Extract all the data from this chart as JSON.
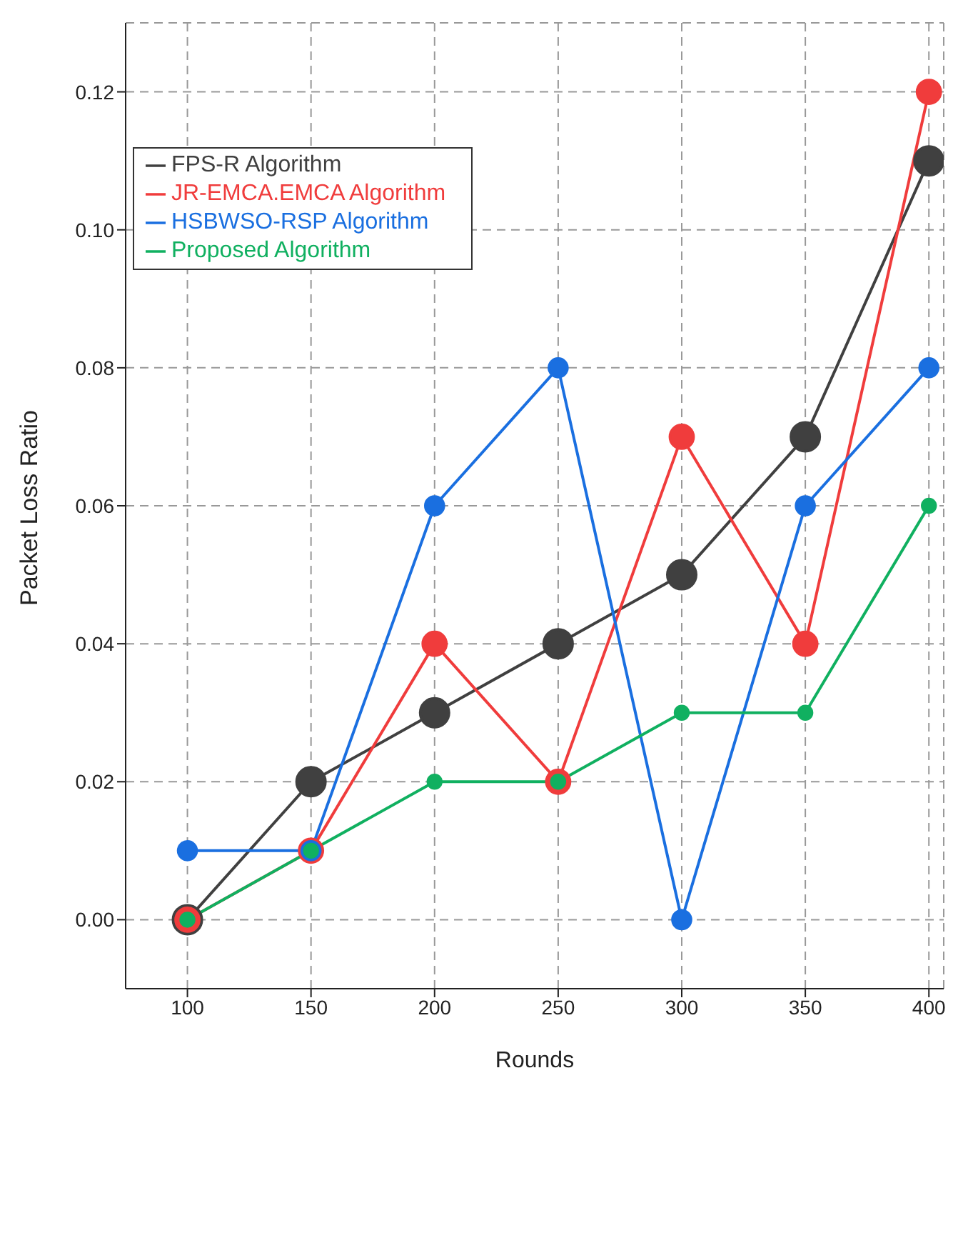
{
  "chart_data": {
    "type": "line",
    "xlabel": "Rounds",
    "ylabel": "Packet Loss Ratio",
    "x": [
      100,
      150,
      200,
      250,
      300,
      350,
      400
    ],
    "series": [
      {
        "name": "FPS-R Algorithm",
        "color": "#404040",
        "values": [
          0,
          0.02,
          0.03,
          0.04,
          0.05,
          0.07,
          0.11
        ]
      },
      {
        "name": "JR-EMCA.EMCA Algorithm",
        "color": "#f03c3c",
        "values": [
          0,
          0.01,
          0.04,
          0.02,
          0.07,
          0.04,
          0.12
        ]
      },
      {
        "name": "HSBWSO-RSP Algorithm",
        "color": "#1a6fe0",
        "values": [
          0.01,
          0.01,
          0.06,
          0.08,
          0,
          0.06,
          0.08
        ]
      },
      {
        "name": "Proposed Algorithm",
        "color": "#10b060",
        "values": [
          0,
          0.01,
          0.02,
          0.02,
          0.03,
          0.03,
          0.06
        ]
      }
    ],
    "xlim": [
      75,
      406
    ],
    "xticks": [
      100,
      150,
      200,
      250,
      300,
      350,
      400
    ],
    "ylim": [
      -0.01,
      0.13
    ],
    "yticks": [
      {
        "value": 0,
        "label": "0.00"
      },
      {
        "value": 0.02,
        "label": "0.02"
      },
      {
        "value": 0.04,
        "label": "0.04"
      },
      {
        "value": 0.06,
        "label": "0.06"
      },
      {
        "value": 0.08,
        "label": "0.08"
      },
      {
        "value": 0.1,
        "label": "0.10"
      },
      {
        "value": 0.12,
        "label": "0.12"
      }
    ],
    "grid": true,
    "legend": "top left",
    "marker": "circle",
    "line_style": "solid"
  }
}
